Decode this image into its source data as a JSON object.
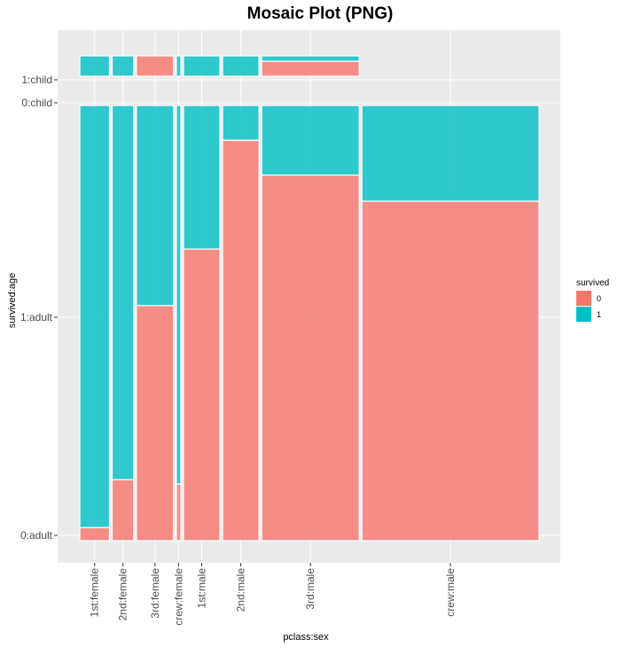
{
  "chart_data": {
    "type": "mosaic",
    "title": "Mosaic Plot (PNG)",
    "xlabel": "pclass:sex",
    "ylabel": "survived:age",
    "grid": true,
    "legend": {
      "title": "survived",
      "position": "right",
      "entries": [
        {
          "label": "0",
          "color": "#F8766D"
        },
        {
          "label": "1",
          "color": "#00BFC4"
        }
      ]
    },
    "x_categories": [
      "1st:female",
      "2nd:female",
      "3rd:female",
      "crew:female",
      "1st:male",
      "2nd:male",
      "3rd:male",
      "crew:male"
    ],
    "y_tick_labels": [
      "0:adult",
      "1:adult",
      "0:child",
      "1:child"
    ],
    "columns": [
      {
        "label": "1st:female",
        "width_share": 0.066,
        "survived_0": {
          "adult": 0.03,
          "child": 0.0
        },
        "survived_1": {
          "adult": 0.97,
          "child": 1.0
        }
      },
      {
        "label": "2nd:female",
        "width_share": 0.048,
        "survived_0": {
          "adult": 0.14,
          "child": 0.0
        },
        "survived_1": {
          "adult": 0.86,
          "child": 1.0
        }
      },
      {
        "label": "3rd:female",
        "width_share": 0.083,
        "survived_0": {
          "adult": 0.54,
          "child": 1.0
        },
        "survived_1": {
          "adult": 0.46,
          "child": 0.0
        }
      },
      {
        "label": "crew:female",
        "width_share": 0.01,
        "survived_0": {
          "adult": 0.13,
          "child": 0.0
        },
        "survived_1": {
          "adult": 0.87,
          "child": 1.0
        }
      },
      {
        "label": "1st:male",
        "width_share": 0.081,
        "survived_0": {
          "adult": 0.67,
          "child": 0.0
        },
        "survived_1": {
          "adult": 0.33,
          "child": 1.0
        }
      },
      {
        "label": "2nd:male",
        "width_share": 0.081,
        "survived_0": {
          "adult": 0.92,
          "child": 0.0
        },
        "survived_1": {
          "adult": 0.08,
          "child": 1.0
        }
      },
      {
        "label": "3rd:male",
        "width_share": 0.217,
        "survived_0": {
          "adult": 0.84,
          "child": 0.73
        },
        "survived_1": {
          "adult": 0.16,
          "child": 0.27
        }
      },
      {
        "label": "crew:male",
        "width_share": 0.394,
        "survived_0": {
          "adult": 0.78,
          "child": 0.0
        },
        "survived_1": {
          "adult": 0.22,
          "child": 0.0
        }
      }
    ]
  }
}
